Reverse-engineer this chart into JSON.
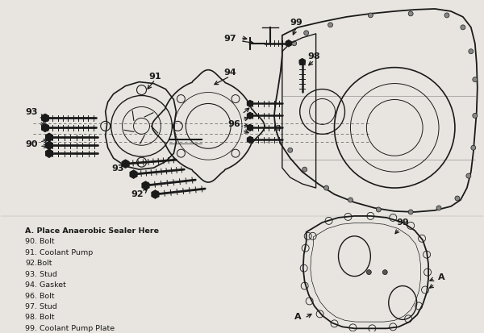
{
  "background_color": "#e8e5e0",
  "line_color": "#1a1a1a",
  "text_color": "#1a1a1a",
  "legend_items": [
    "A. Place Anaerobic Sealer Here",
    "90. Bolt",
    "91. Coolant Pump",
    "92.Bolt",
    "93. Stud",
    "94. Gasket",
    "96. Bolt",
    "97. Stud",
    "98. Bolt",
    "99. Coolant Pump Plate"
  ],
  "fig_width": 6.0,
  "fig_height": 4.14,
  "dpi": 100
}
